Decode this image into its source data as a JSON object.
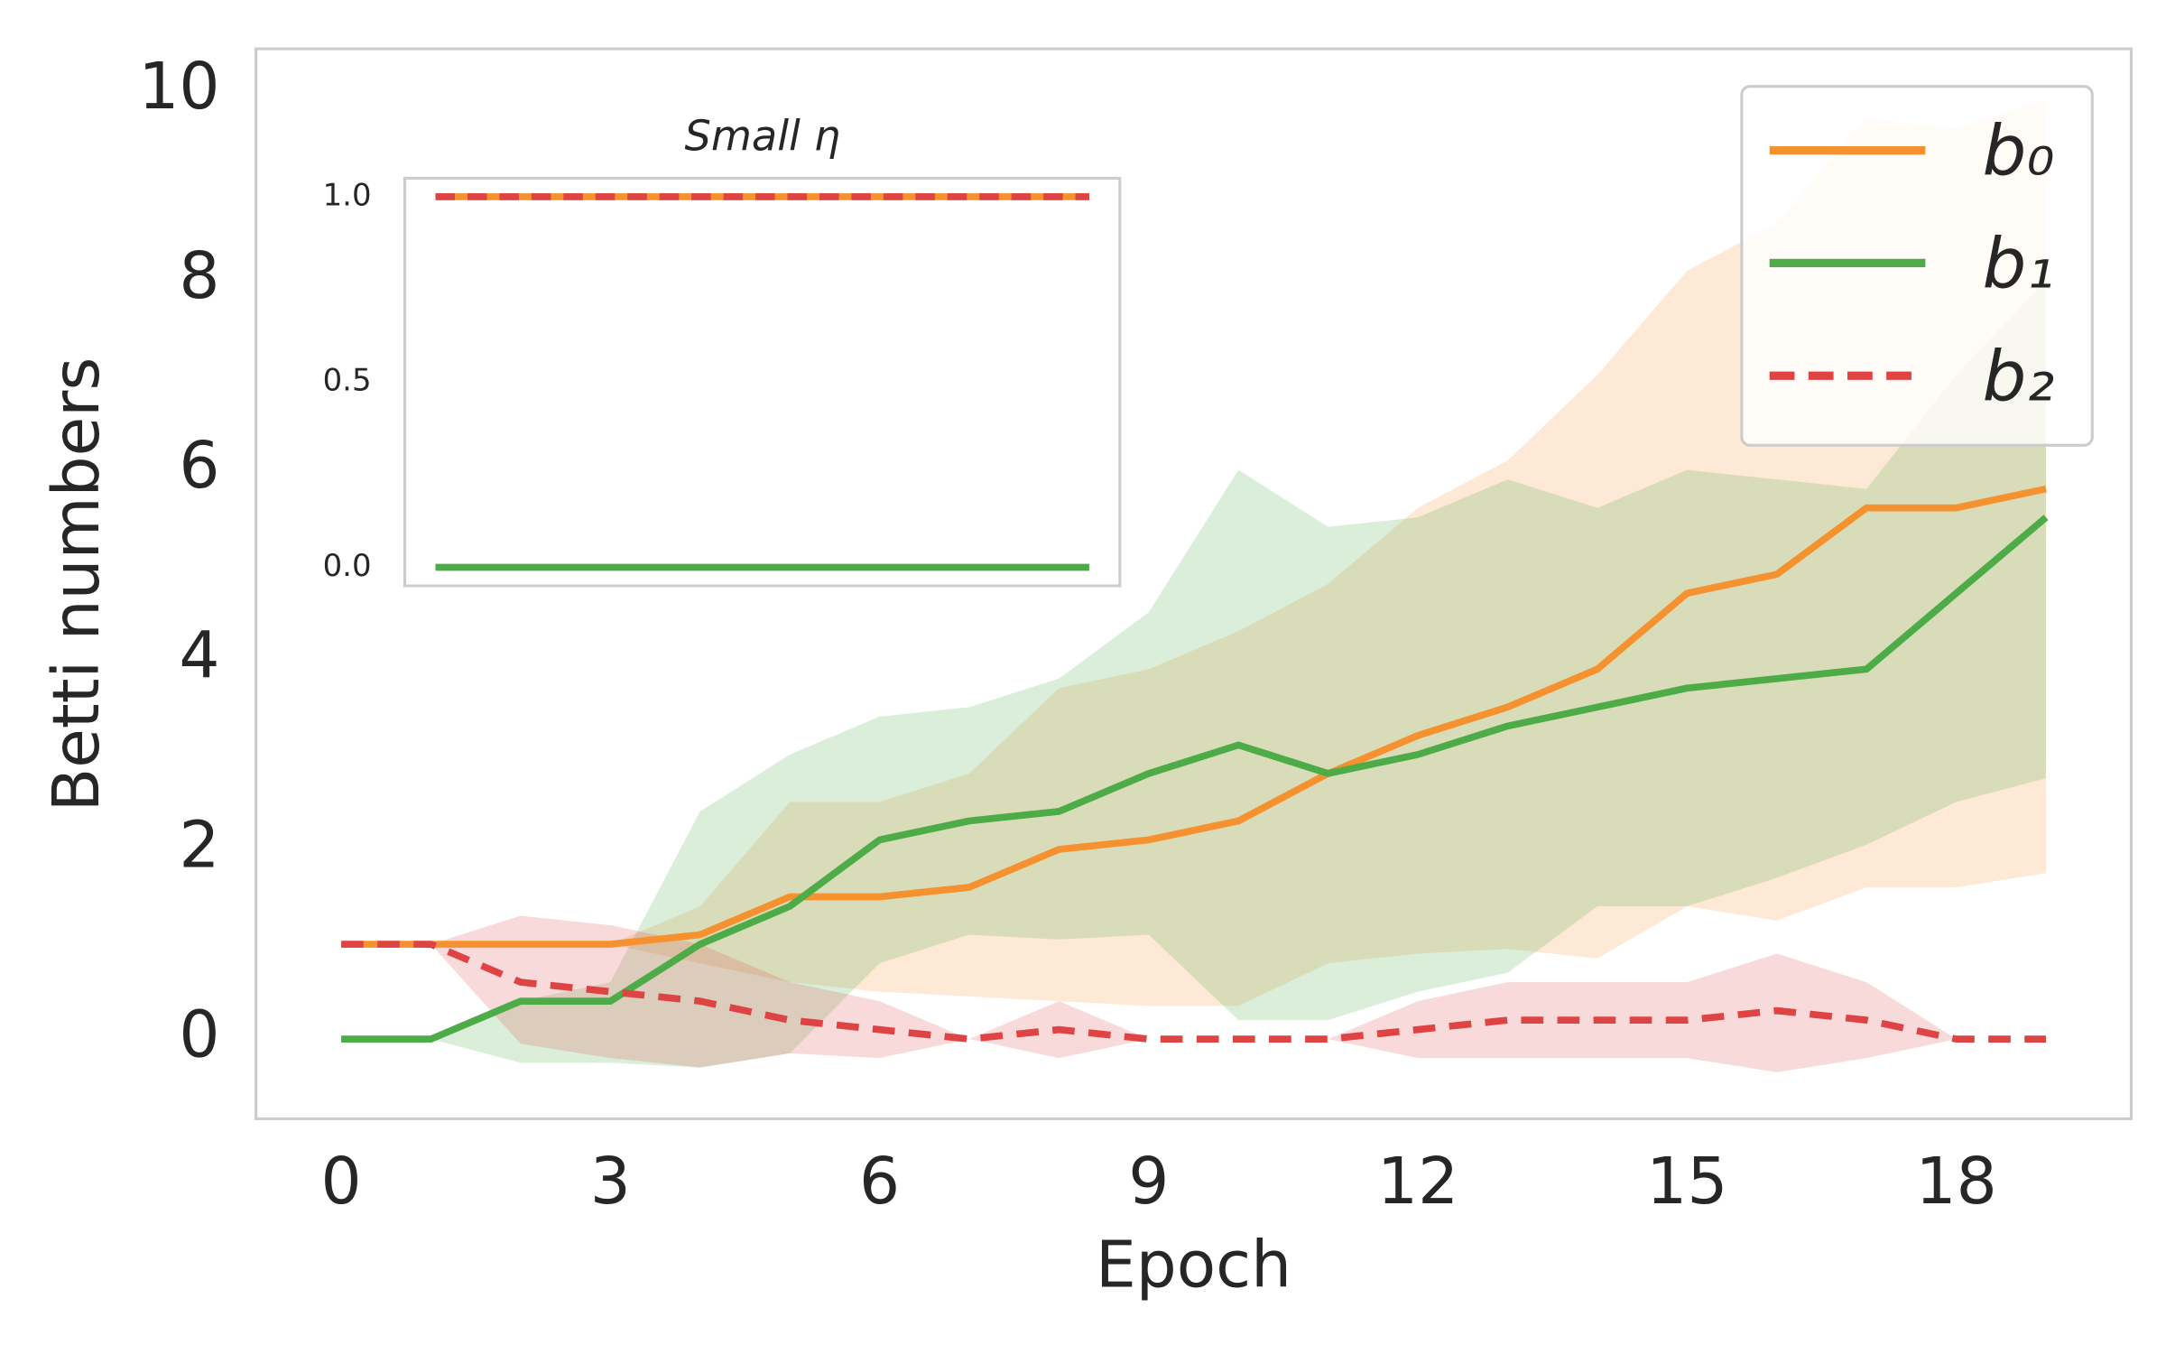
{
  "chart_data": [
    {
      "type": "line",
      "xlabel": "Epoch",
      "ylabel": "Betti numbers",
      "x": [
        0,
        1,
        2,
        3,
        4,
        5,
        6,
        7,
        8,
        9,
        10,
        11,
        12,
        13,
        14,
        15,
        16,
        17,
        18,
        19
      ],
      "xlim": [
        -0.95,
        19.95
      ],
      "ylim": [
        -0.84,
        10.44
      ],
      "xticks": [
        0,
        3,
        6,
        9,
        12,
        15,
        18
      ],
      "yticks": [
        0,
        2,
        4,
        6,
        8,
        10
      ],
      "grid": false,
      "legend": "upper right",
      "series": [
        {
          "name": "b₀",
          "color": "#f5922f",
          "linestyle": "solid",
          "values": [
            1,
            1,
            1,
            1,
            1.1,
            1.5,
            1.5,
            1.6,
            2.0,
            2.1,
            2.3,
            2.8,
            3.2,
            3.5,
            3.9,
            4.7,
            4.9,
            5.6,
            5.6,
            5.8
          ],
          "upper": [
            1,
            1,
            1,
            1,
            1.4,
            2.5,
            2.5,
            2.8,
            3.7,
            3.9,
            4.3,
            4.8,
            5.6,
            6.1,
            7.0,
            8.1,
            8.6,
            9.7,
            9.6,
            9.9
          ],
          "lower": [
            1,
            1,
            1,
            1,
            0.8,
            0.6,
            0.5,
            0.45,
            0.4,
            0.35,
            0.35,
            0.8,
            0.9,
            0.95,
            0.85,
            1.4,
            1.25,
            1.6,
            1.6,
            1.75
          ]
        },
        {
          "name": "b₁",
          "color": "#4dab48",
          "linestyle": "solid",
          "values": [
            0,
            0,
            0.4,
            0.4,
            1.0,
            1.4,
            2.1,
            2.3,
            2.4,
            2.8,
            3.1,
            2.8,
            3.0,
            3.3,
            3.5,
            3.7,
            3.8,
            3.9,
            4.7,
            5.5
          ],
          "upper": [
            0,
            0,
            0.4,
            0.6,
            2.4,
            3.0,
            3.4,
            3.5,
            3.8,
            4.5,
            6.0,
            5.4,
            5.5,
            5.9,
            5.6,
            6.0,
            5.9,
            5.8,
            7.0,
            8.0
          ],
          "lower": [
            0,
            0,
            -0.25,
            -0.25,
            -0.3,
            -0.15,
            0.8,
            1.1,
            1.05,
            1.1,
            0.2,
            0.2,
            0.5,
            0.7,
            1.4,
            1.4,
            1.7,
            2.05,
            2.5,
            2.75
          ]
        },
        {
          "name": "b₂",
          "color": "#de4444",
          "linestyle": "dashed",
          "values": [
            1,
            1,
            0.6,
            0.5,
            0.4,
            0.2,
            0.1,
            0,
            0.1,
            0,
            0,
            0,
            0.1,
            0.2,
            0.2,
            0.2,
            0.3,
            0.2,
            0,
            0
          ],
          "upper": [
            1,
            1,
            1.3,
            1.2,
            1.0,
            0.6,
            0.4,
            0,
            0.4,
            0,
            0,
            0,
            0.4,
            0.6,
            0.6,
            0.6,
            0.9,
            0.6,
            0,
            0
          ],
          "lower": [
            1,
            1,
            -0.05,
            -0.2,
            -0.3,
            -0.15,
            -0.2,
            0,
            -0.2,
            0,
            0,
            0,
            -0.2,
            -0.2,
            -0.2,
            -0.2,
            -0.35,
            -0.2,
            0,
            0
          ]
        }
      ]
    },
    {
      "type": "line",
      "title": "Small η",
      "x": [
        0,
        1,
        2,
        3,
        4,
        5,
        6,
        7,
        8,
        9,
        10,
        11,
        12,
        13,
        14,
        15,
        16,
        17,
        18,
        19
      ],
      "xlim": [
        -0.89,
        19.89
      ],
      "ylim": [
        -0.05,
        1.05
      ],
      "yticks": [
        {
          "value": 0,
          "label": "0.0"
        },
        {
          "value": 0.5,
          "label": "0.5"
        },
        {
          "value": 1,
          "label": "1.0"
        }
      ],
      "grid": false,
      "series": [
        {
          "color": "#f5922f",
          "linestyle": "solid",
          "values": [
            1,
            1,
            1,
            1,
            1,
            1,
            1,
            1,
            1,
            1,
            1,
            1,
            1,
            1,
            1,
            1,
            1,
            1,
            1,
            1
          ]
        },
        {
          "color": "#4dab48",
          "linestyle": "solid",
          "values": [
            0,
            0,
            0,
            0,
            0,
            0,
            0,
            0,
            0,
            0,
            0,
            0,
            0,
            0,
            0,
            0,
            0,
            0,
            0,
            0
          ]
        },
        {
          "color": "#de4444",
          "linestyle": "dashed",
          "values": [
            1,
            1,
            1,
            1,
            1,
            1,
            1,
            1,
            1,
            1,
            1,
            1,
            1,
            1,
            1,
            1,
            1,
            1,
            1,
            1
          ]
        }
      ]
    }
  ]
}
